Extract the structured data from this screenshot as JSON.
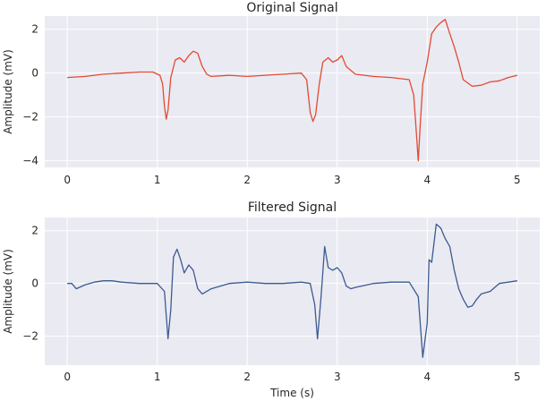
{
  "chart_data": [
    {
      "type": "line",
      "title": "Original Signal",
      "xlabel": "",
      "ylabel": "Amplitude (mV)",
      "xlim": [
        -0.25,
        5.25
      ],
      "ylim": [
        -4.3,
        2.6
      ],
      "xticks": [
        0,
        1,
        2,
        3,
        4,
        5
      ],
      "yticks": [
        -4,
        -2,
        0,
        2
      ],
      "grid": true,
      "series": [
        {
          "color": "#e24a33",
          "x": [
            0.0,
            0.2,
            0.4,
            0.6,
            0.8,
            0.95,
            1.03,
            1.06,
            1.08,
            1.1,
            1.12,
            1.15,
            1.2,
            1.25,
            1.3,
            1.35,
            1.4,
            1.45,
            1.5,
            1.55,
            1.6,
            1.8,
            2.0,
            2.2,
            2.4,
            2.6,
            2.66,
            2.7,
            2.73,
            2.76,
            2.8,
            2.84,
            2.9,
            2.95,
            3.0,
            3.05,
            3.1,
            3.2,
            3.4,
            3.6,
            3.8,
            3.85,
            3.88,
            3.9,
            3.92,
            3.95,
            4.0,
            4.05,
            4.1,
            4.15,
            4.2,
            4.25,
            4.3,
            4.35,
            4.4,
            4.5,
            4.6,
            4.7,
            4.8,
            4.9,
            5.0
          ],
          "y": [
            -0.2,
            -0.15,
            -0.05,
            0.0,
            0.05,
            0.05,
            -0.1,
            -0.5,
            -1.5,
            -2.1,
            -1.7,
            -0.2,
            0.6,
            0.7,
            0.5,
            0.8,
            1.0,
            0.9,
            0.3,
            -0.05,
            -0.15,
            -0.1,
            -0.15,
            -0.1,
            -0.05,
            0.0,
            -0.3,
            -1.8,
            -2.2,
            -1.9,
            -0.5,
            0.5,
            0.7,
            0.5,
            0.6,
            0.8,
            0.3,
            -0.05,
            -0.15,
            -0.2,
            -0.3,
            -1.0,
            -2.8,
            -4.0,
            -2.5,
            -0.5,
            0.5,
            1.8,
            2.1,
            2.3,
            2.45,
            1.8,
            1.2,
            0.5,
            -0.3,
            -0.6,
            -0.55,
            -0.4,
            -0.35,
            -0.2,
            -0.1
          ]
        }
      ]
    },
    {
      "type": "line",
      "title": "Filtered Signal",
      "xlabel": "Time (s)",
      "ylabel": "Amplitude (mV)",
      "xlim": [
        -0.25,
        5.25
      ],
      "ylim": [
        -3.1,
        2.5
      ],
      "xticks": [
        0,
        1,
        2,
        3,
        4,
        5
      ],
      "yticks": [
        -2,
        0,
        2
      ],
      "grid": true,
      "series": [
        {
          "color": "#3b5b92",
          "x": [
            0.0,
            0.05,
            0.1,
            0.2,
            0.3,
            0.4,
            0.5,
            0.6,
            0.8,
            1.0,
            1.08,
            1.12,
            1.15,
            1.18,
            1.22,
            1.26,
            1.3,
            1.35,
            1.4,
            1.45,
            1.5,
            1.6,
            1.8,
            2.0,
            2.2,
            2.4,
            2.6,
            2.7,
            2.75,
            2.78,
            2.82,
            2.86,
            2.9,
            2.95,
            3.0,
            3.05,
            3.1,
            3.15,
            3.2,
            3.4,
            3.6,
            3.8,
            3.9,
            3.95,
            4.0,
            4.02,
            4.05,
            4.1,
            4.15,
            4.2,
            4.25,
            4.3,
            4.35,
            4.4,
            4.45,
            4.5,
            4.55,
            4.6,
            4.7,
            4.8,
            4.9,
            5.0
          ],
          "y": [
            0.0,
            0.0,
            -0.2,
            -0.05,
            0.05,
            0.1,
            0.1,
            0.05,
            0.0,
            0.0,
            -0.3,
            -2.1,
            -1.0,
            1.0,
            1.3,
            0.9,
            0.4,
            0.7,
            0.5,
            -0.2,
            -0.4,
            -0.2,
            0.0,
            0.05,
            0.0,
            0.0,
            0.05,
            0.0,
            -0.8,
            -2.1,
            -0.5,
            1.4,
            0.6,
            0.5,
            0.6,
            0.4,
            -0.1,
            -0.2,
            -0.15,
            0.0,
            0.05,
            0.05,
            -0.5,
            -2.8,
            -1.5,
            0.9,
            0.8,
            2.25,
            2.1,
            1.7,
            1.4,
            0.5,
            -0.2,
            -0.6,
            -0.9,
            -0.85,
            -0.6,
            -0.4,
            -0.3,
            0.0,
            0.05,
            0.1
          ]
        }
      ]
    }
  ]
}
